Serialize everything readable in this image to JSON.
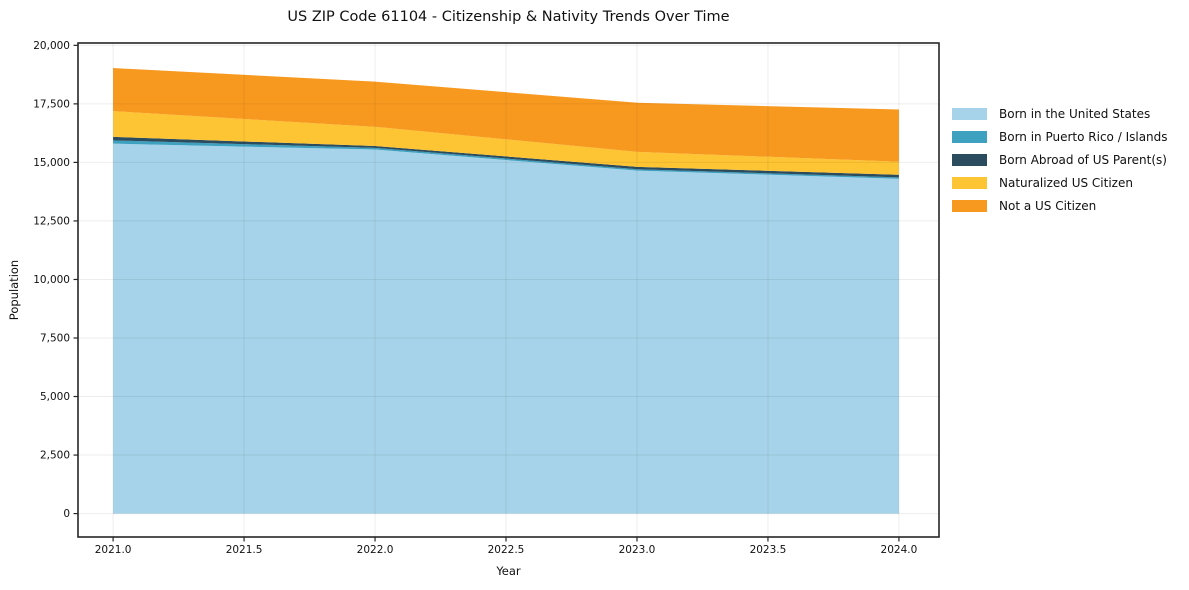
{
  "figure": {
    "background": "#ffffff"
  },
  "chart_data": {
    "type": "area",
    "stacked": true,
    "title": "US ZIP Code 61104 - Citizenship & Nativity Trends Over Time",
    "xlabel": "Year",
    "ylabel": "Population",
    "x": [
      2021,
      2022,
      2023,
      2024
    ],
    "series": [
      {
        "name": "Born in the United States",
        "color": "#A6D3E9",
        "values": [
          15800,
          15550,
          14650,
          14300
        ]
      },
      {
        "name": "Born in Puerto Rico / Islands",
        "color": "#3FA1C0",
        "values": [
          140,
          70,
          60,
          60
        ]
      },
      {
        "name": "Born Abroad of US Parent(s)",
        "color": "#2B4B5E",
        "values": [
          150,
          80,
          100,
          110
        ]
      },
      {
        "name": "Naturalized US Citizen",
        "color": "#FDC433",
        "values": [
          1100,
          820,
          640,
          560
        ]
      },
      {
        "name": "Not a US Citizen",
        "color": "#F8991F",
        "values": [
          1840,
          1930,
          2100,
          2230
        ]
      }
    ],
    "totals": [
      19030,
      18450,
      17550,
      17260
    ],
    "x_ticks": {
      "values": [
        2021.0,
        2021.5,
        2022.0,
        2022.5,
        2023.0,
        2023.5,
        2024.0
      ],
      "labels": [
        "2021.0",
        "2021.5",
        "2022.0",
        "2022.5",
        "2023.0",
        "2023.5",
        "2024.0"
      ]
    },
    "y_ticks": {
      "values": [
        0,
        2500,
        5000,
        7500,
        10000,
        12500,
        15000,
        17500,
        20000
      ],
      "labels": [
        "0",
        "2,500",
        "5,000",
        "7,500",
        "10,000",
        "12,500",
        "15,000",
        "17,500",
        "20,000"
      ]
    },
    "xlim": [
      2020.866,
      2024.153
    ],
    "ylim": [
      -1000,
      20100
    ],
    "grid": true,
    "grid_color": "rgba(0,0,0,0.07)",
    "axis_color": "#262626",
    "legend_position": "right-outside"
  }
}
